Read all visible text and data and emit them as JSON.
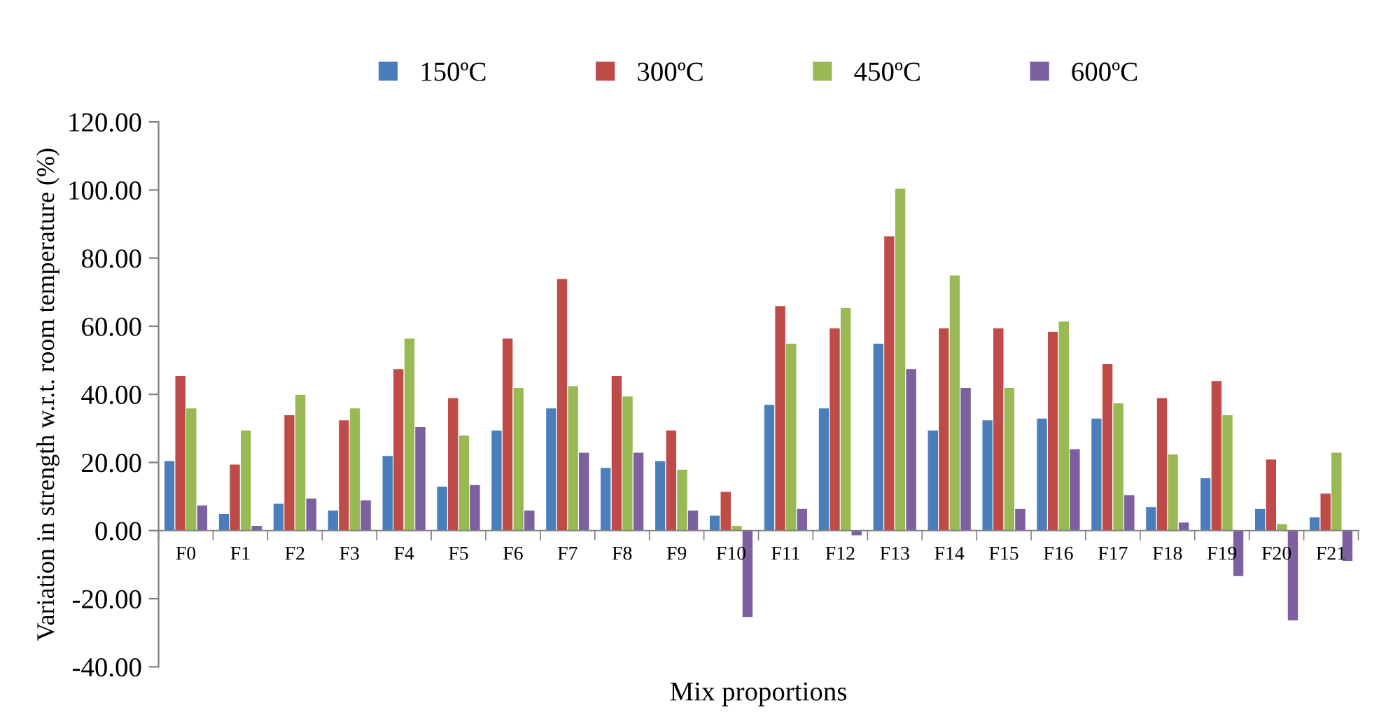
{
  "chart_data": {
    "type": "bar",
    "xlabel": "Mix proportions",
    "ylabel": "Variation in strength w.r.t. room temperature (%)",
    "categories": [
      "F0",
      "F1",
      "F2",
      "F3",
      "F4",
      "F5",
      "F6",
      "F7",
      "F8",
      "F9",
      "F10",
      "F11",
      "F12",
      "F13",
      "F14",
      "F15",
      "F16",
      "F17",
      "F18",
      "F19",
      "F20",
      "F21"
    ],
    "series": [
      {
        "name": "150ºC",
        "color": "#4a7ebb",
        "values": [
          20.5,
          5,
          8,
          6,
          22,
          13,
          29.5,
          36,
          18.5,
          20.5,
          4.5,
          37,
          36,
          55,
          29.5,
          32.5,
          33,
          33,
          7,
          15.5,
          6.5,
          4
        ]
      },
      {
        "name": "300ºC",
        "color": "#be4b48",
        "values": [
          45.5,
          19.5,
          34,
          32.5,
          47.5,
          39,
          56.5,
          74,
          45.5,
          29.5,
          11.5,
          66,
          59.5,
          86.5,
          59.5,
          59.5,
          58.5,
          49,
          39,
          44,
          21,
          11
        ]
      },
      {
        "name": "450ºC",
        "color": "#98b954",
        "values": [
          36,
          29.5,
          40,
          36,
          56.5,
          28,
          42,
          42.5,
          39.5,
          18,
          1.5,
          55,
          65.5,
          100.5,
          75,
          42,
          61.5,
          37.5,
          22.5,
          34,
          2,
          23
        ]
      },
      {
        "name": "600ºC",
        "color": "#7d60a0",
        "values": [
          7.5,
          1.5,
          9.5,
          9,
          30.5,
          13.5,
          6,
          23,
          23,
          6,
          -25.5,
          6.5,
          -1.5,
          47.5,
          42,
          6.5,
          24,
          10.5,
          2.5,
          -13.5,
          -26.5,
          -9
        ]
      }
    ],
    "ylim": [
      -40,
      120
    ],
    "yticks": [
      {
        "value": -40,
        "label": "-40.00"
      },
      {
        "value": -20,
        "label": "-20.00"
      },
      {
        "value": 0,
        "label": "0.00"
      },
      {
        "value": 20,
        "label": "20.00"
      },
      {
        "value": 40,
        "label": "40.00"
      },
      {
        "value": 60,
        "label": "60.00"
      },
      {
        "value": 80,
        "label": "80.00"
      },
      {
        "value": 100,
        "label": "100.00"
      },
      {
        "value": 120,
        "label": "120.00"
      }
    ],
    "grid": false,
    "legend": "top"
  }
}
